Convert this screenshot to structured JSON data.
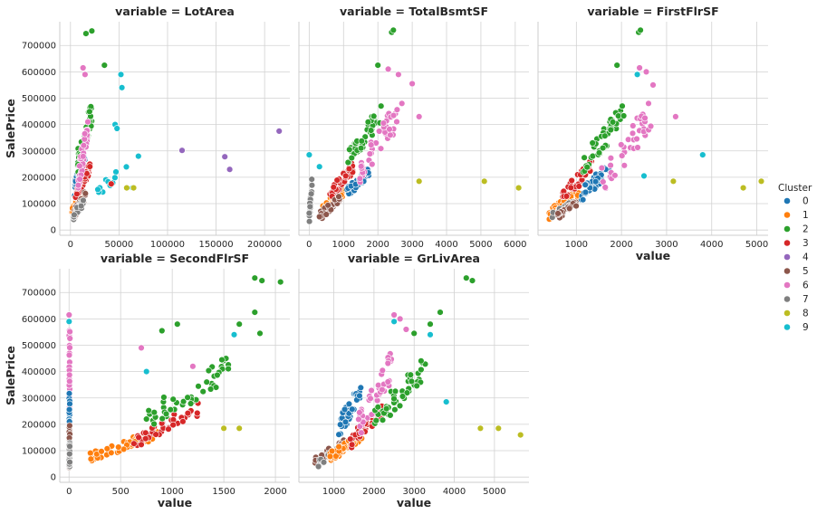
{
  "chart_data": {
    "type": "scatter",
    "title_prefix": "variable = ",
    "colors": {
      "0": "#1f77b4",
      "1": "#ff7f0e",
      "2": "#2ca02c",
      "3": "#d62728",
      "4": "#9467bd",
      "5": "#8c564b",
      "6": "#e377c2",
      "7": "#7f7f7f",
      "8": "#bcbd22",
      "9": "#17becf"
    },
    "ylabel": "SalePrice",
    "xlabel": "value",
    "ylim": [
      -20000,
      790000
    ],
    "yticks": [
      0,
      100000,
      200000,
      300000,
      400000,
      500000,
      600000,
      700000
    ],
    "legend": {
      "title": "Cluster",
      "entries": [
        "0",
        "1",
        "2",
        "3",
        "4",
        "5",
        "6",
        "7",
        "8",
        "9"
      ],
      "placement": "right"
    },
    "panels": [
      {
        "variable": "LotArea",
        "xlim": [
          -11000,
          226000
        ],
        "xticks": [
          0,
          50000,
          100000,
          150000,
          200000
        ],
        "show_xlabel": false,
        "show_yticks": true,
        "clusters": [
          {
            "c": "0",
            "x": [
              4000,
              15000
            ],
            "y": [
              110000,
              330000
            ]
          },
          {
            "c": "1",
            "x": [
              1500,
              11000
            ],
            "y": [
              60000,
              145000
            ]
          },
          {
            "c": "2",
            "x": [
              7000,
              22000
            ],
            "y": [
              220000,
              480000
            ]
          },
          {
            "c": "3",
            "x": [
              5000,
              20000
            ],
            "y": [
              120000,
              250000
            ]
          },
          {
            "c": "5",
            "x": [
              3000,
              16000
            ],
            "y": [
              40000,
              150000
            ]
          },
          {
            "c": "6",
            "x": [
              8000,
              18000
            ],
            "y": [
              160000,
              420000
            ]
          },
          {
            "c": "7",
            "x": [
              3000,
              14000
            ],
            "y": [
              40000,
              120000
            ]
          },
          {
            "c": "9",
            "x": [
              28000,
              60000
            ],
            "y": [
              120000,
              280000
            ]
          }
        ],
        "points": [
          {
            "c": "2",
            "x": [
              16000,
              22000,
              35000
            ],
            "y": [
              745000,
              755000,
              625000
            ]
          },
          {
            "c": "6",
            "x": [
              13000,
              15000
            ],
            "y": [
              615000,
              590000
            ]
          },
          {
            "c": "9",
            "x": [
              52000,
              53000,
              46000,
              48000,
              70000,
              64000
            ],
            "y": [
              590000,
              540000,
              400000,
              385000,
              280000,
              160000
            ]
          },
          {
            "c": "4",
            "x": [
              115000,
              159000,
              164000,
              215000
            ],
            "y": [
              302000,
              278000,
              230000,
              375000
            ]
          },
          {
            "c": "8",
            "x": [
              58000,
              65000
            ],
            "y": [
              160000,
              160000
            ]
          },
          {
            "c": "3",
            "x": [
              42000
            ],
            "y": [
              175000
            ]
          }
        ]
      },
      {
        "variable": "TotalBsmtSF",
        "xlim": [
          -300,
          6400
        ],
        "xticks": [
          0,
          1000,
          2000,
          3000,
          4000,
          5000,
          6000
        ],
        "show_xlabel": false,
        "show_yticks": false,
        "clusters": [
          {
            "c": "1",
            "x": [
              400,
              1100
            ],
            "y": [
              70000,
              170000
            ]
          },
          {
            "c": "3",
            "x": [
              600,
              1300
            ],
            "y": [
              120000,
              260000
            ]
          },
          {
            "c": "0",
            "x": [
              1100,
              1800
            ],
            "y": [
              130000,
              240000
            ]
          },
          {
            "c": "2",
            "x": [
              1100,
              2100
            ],
            "y": [
              220000,
              470000
            ]
          },
          {
            "c": "6",
            "x": [
              1400,
              2600
            ],
            "y": [
              180000,
              480000
            ]
          },
          {
            "c": "5",
            "x": [
              300,
              900
            ],
            "y": [
              40000,
              130000
            ]
          },
          {
            "c": "7",
            "x": [
              0,
              80
            ],
            "y": [
              20000,
              210000
            ]
          }
        ],
        "points": [
          {
            "c": "2",
            "x": [
              2400,
              2450,
              2000
            ],
            "y": [
              750000,
              758000,
              625000
            ]
          },
          {
            "c": "6",
            "x": [
              2300,
              2600,
              2700,
              3000,
              3200
            ],
            "y": [
              610000,
              590000,
              480000,
              555000,
              430000
            ]
          },
          {
            "c": "8",
            "x": [
              3200,
              5100,
              6100
            ],
            "y": [
              185000,
              185000,
              160000
            ]
          },
          {
            "c": "9",
            "x": [
              0,
              300
            ],
            "y": [
              285000,
              240000
            ]
          }
        ]
      },
      {
        "variable": "FirstFlrSF",
        "xlim": [
          150,
          5250
        ],
        "xticks": [
          1000,
          2000,
          3000,
          4000,
          5000
        ],
        "show_xlabel": true,
        "show_yticks": false,
        "clusters": [
          {
            "c": "1",
            "x": [
              400,
              1050
            ],
            "y": [
              40000,
              160000
            ]
          },
          {
            "c": "3",
            "x": [
              700,
              1350
            ],
            "y": [
              110000,
              260000
            ]
          },
          {
            "c": "7",
            "x": [
              450,
              950
            ],
            "y": [
              40000,
              120000
            ]
          },
          {
            "c": "5",
            "x": [
              550,
              1000
            ],
            "y": [
              40000,
              110000
            ]
          },
          {
            "c": "0",
            "x": [
              1100,
              1750
            ],
            "y": [
              110000,
              260000
            ]
          },
          {
            "c": "2",
            "x": [
              1150,
              2050
            ],
            "y": [
              220000,
              470000
            ]
          },
          {
            "c": "6",
            "x": [
              1550,
              2650
            ],
            "y": [
              140000,
              480000
            ]
          }
        ],
        "points": [
          {
            "c": "2",
            "x": [
              2380,
              2420,
              1900
            ],
            "y": [
              750000,
              758000,
              625000
            ]
          },
          {
            "c": "6",
            "x": [
              2400,
              2550,
              2700,
              3200,
              2600
            ],
            "y": [
              615000,
              600000,
              550000,
              430000,
              480000
            ]
          },
          {
            "c": "9",
            "x": [
              2350,
              3800,
              2500
            ],
            "y": [
              590000,
              285000,
              205000
            ]
          },
          {
            "c": "8",
            "x": [
              3150,
              4700,
              5100
            ],
            "y": [
              185000,
              160000,
              185000
            ]
          }
        ]
      },
      {
        "variable": "SecondFlrSF",
        "xlim": [
          -90,
          2140
        ],
        "xticks": [
          0,
          500,
          1000,
          1500,
          2000
        ],
        "show_xlabel": true,
        "show_yticks": true,
        "clusters": [
          {
            "c": "6",
            "x": [
              0,
              8
            ],
            "y": [
              110000,
              600000
            ]
          },
          {
            "c": "0",
            "x": [
              0,
              8
            ],
            "y": [
              90000,
              320000
            ]
          },
          {
            "c": "5",
            "x": [
              0,
              8
            ],
            "y": [
              35000,
              200000
            ]
          },
          {
            "c": "7",
            "x": [
              0,
              8
            ],
            "y": [
              40000,
              150000
            ]
          },
          {
            "c": "1",
            "x": [
              200,
              850
            ],
            "y": [
              60000,
              180000
            ]
          },
          {
            "c": "3",
            "x": [
              600,
              1250
            ],
            "y": [
              110000,
              280000
            ]
          },
          {
            "c": "2",
            "x": [
              750,
              1550
            ],
            "y": [
              180000,
              450000
            ]
          }
        ],
        "points": [
          {
            "c": "2",
            "x": [
              1800,
              1870,
              2050,
              1650,
              1800,
              1850,
              1050,
              900
            ],
            "y": [
              755000,
              745000,
              740000,
              580000,
              625000,
              545000,
              580000,
              555000
            ]
          },
          {
            "c": "6",
            "x": [
              0,
              0,
              700,
              1200
            ],
            "y": [
              615000,
              590000,
              490000,
              420000
            ]
          },
          {
            "c": "9",
            "x": [
              0,
              1600,
              750
            ],
            "y": [
              590000,
              540000,
              400000
            ]
          },
          {
            "c": "8",
            "x": [
              1500,
              1650
            ],
            "y": [
              185000,
              185000
            ]
          }
        ]
      },
      {
        "variable": "GrLivArea",
        "xlim": [
          130,
          5860
        ],
        "xticks": [
          1000,
          2000,
          3000,
          4000,
          5000
        ],
        "show_xlabel": true,
        "show_yticks": false,
        "clusters": [
          {
            "c": "5",
            "x": [
              450,
              1250
            ],
            "y": [
              35000,
              140000
            ]
          },
          {
            "c": "7",
            "x": [
              600,
              1200
            ],
            "y": [
              40000,
              120000
            ]
          },
          {
            "c": "1",
            "x": [
              900,
              1700
            ],
            "y": [
              60000,
              170000
            ]
          },
          {
            "c": "0",
            "x": [
              1100,
              1700
            ],
            "y": [
              150000,
              360000
            ]
          },
          {
            "c": "3",
            "x": [
              1400,
              2200
            ],
            "y": [
              110000,
              280000
            ]
          },
          {
            "c": "6",
            "x": [
              1600,
              2500
            ],
            "y": [
              150000,
              480000
            ]
          },
          {
            "c": "2",
            "x": [
              2000,
              3300
            ],
            "y": [
              180000,
              450000
            ]
          }
        ],
        "points": [
          {
            "c": "2",
            "x": [
              4300,
              4450,
              3400,
              3650,
              3000
            ],
            "y": [
              755000,
              745000,
              580000,
              625000,
              545000
            ]
          },
          {
            "c": "6",
            "x": [
              2500,
              2650,
              2800
            ],
            "y": [
              615000,
              600000,
              560000
            ]
          },
          {
            "c": "9",
            "x": [
              2500,
              3400,
              3800
            ],
            "y": [
              590000,
              540000,
              285000
            ]
          },
          {
            "c": "8",
            "x": [
              4650,
              5100,
              5650
            ],
            "y": [
              185000,
              185000,
              160000
            ]
          }
        ]
      }
    ]
  }
}
